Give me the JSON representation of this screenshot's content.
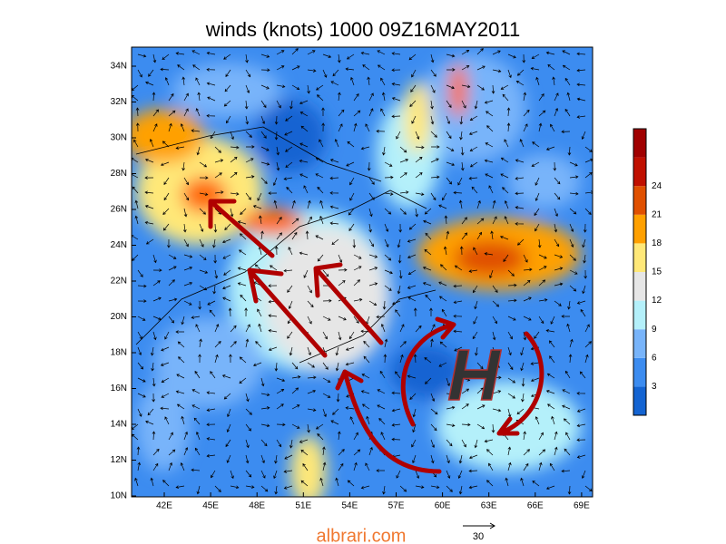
{
  "title": "winds (knots) 1000 09Z16MAY2011",
  "lat_labels": [
    "10N",
    "12N",
    "14N",
    "16N",
    "18N",
    "20N",
    "22N",
    "24N",
    "26N",
    "28N",
    "30N",
    "32N",
    "34N"
  ],
  "lon_labels": [
    "42E",
    "45E",
    "48E",
    "51E",
    "54E",
    "57E",
    "60E",
    "63E",
    "66E",
    "69E"
  ],
  "colorbar": {
    "labels": [
      "3",
      "6",
      "9",
      "12",
      "15",
      "18",
      "21",
      "24"
    ]
  },
  "annotation": "H",
  "reference_vector": "30",
  "watermark": "albrari.com"
}
